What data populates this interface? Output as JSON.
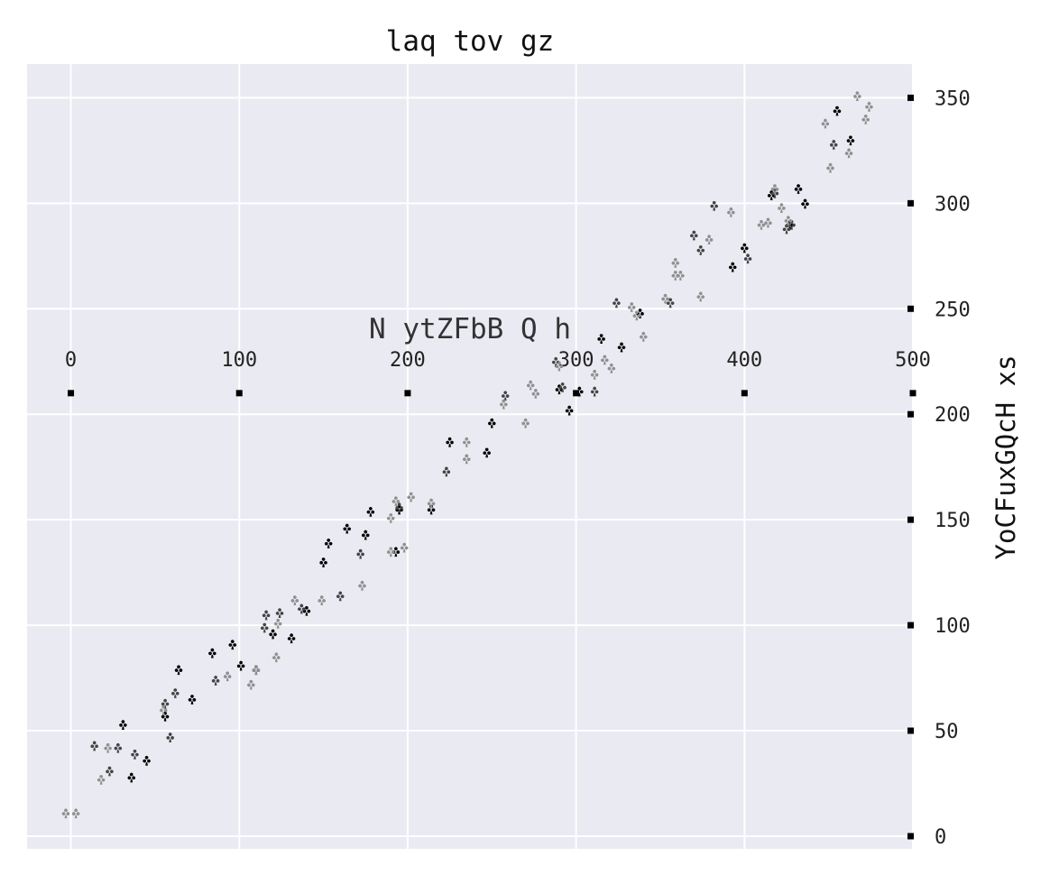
{
  "chart_data": {
    "type": "scatter",
    "title": "laq tov gz",
    "xlabel": "N ytZFbB Q h",
    "ylabel": "YoCFuxGQcH xs",
    "xlim": [
      -26,
      500
    ],
    "ylim": [
      -6,
      366
    ],
    "xticks": [
      0,
      100,
      200,
      300,
      400,
      500
    ],
    "yticks": [
      0,
      50,
      100,
      150,
      200,
      250,
      300,
      350
    ],
    "x_axis_position": "middle",
    "y_axis_position": "right",
    "grid": true,
    "background": "#eaeaf2",
    "grid_color": "#ffffff",
    "marker": "club",
    "series": [
      {
        "color": "#000000",
        "points": [
          [
            31,
            52
          ],
          [
            36,
            27
          ],
          [
            45,
            35
          ],
          [
            56,
            56
          ],
          [
            64,
            78
          ],
          [
            72,
            64
          ],
          [
            84,
            86
          ],
          [
            96,
            90
          ],
          [
            101,
            80
          ],
          [
            110,
            78
          ],
          [
            120,
            95
          ],
          [
            131,
            93
          ],
          [
            140,
            106
          ],
          [
            150,
            129
          ],
          [
            153,
            138
          ],
          [
            164,
            145
          ],
          [
            175,
            142
          ],
          [
            178,
            153
          ],
          [
            193,
            134
          ],
          [
            195,
            154
          ],
          [
            214,
            154
          ],
          [
            225,
            186
          ],
          [
            247,
            181
          ],
          [
            250,
            195
          ],
          [
            290,
            211
          ],
          [
            296,
            201
          ],
          [
            302,
            210
          ],
          [
            315,
            235
          ],
          [
            327,
            231
          ],
          [
            338,
            247
          ],
          [
            393,
            269
          ],
          [
            400,
            278
          ],
          [
            416,
            303
          ],
          [
            427,
            289
          ],
          [
            432,
            306
          ],
          [
            436,
            299
          ],
          [
            455,
            343
          ],
          [
            463,
            329
          ]
        ]
      },
      {
        "color": "#444444",
        "points": [
          [
            14,
            42
          ],
          [
            23,
            30
          ],
          [
            28,
            41
          ],
          [
            38,
            38
          ],
          [
            56,
            62
          ],
          [
            59,
            46
          ],
          [
            62,
            67
          ],
          [
            86,
            73
          ],
          [
            115,
            98
          ],
          [
            116,
            104
          ],
          [
            124,
            105
          ],
          [
            137,
            107
          ],
          [
            160,
            113
          ],
          [
            172,
            133
          ],
          [
            195,
            155
          ],
          [
            223,
            172
          ],
          [
            258,
            208
          ],
          [
            288,
            224
          ],
          [
            292,
            212
          ],
          [
            311,
            210
          ],
          [
            324,
            252
          ],
          [
            356,
            252
          ],
          [
            370,
            284
          ],
          [
            374,
            277
          ],
          [
            382,
            298
          ],
          [
            402,
            273
          ],
          [
            418,
            304
          ],
          [
            425,
            287
          ],
          [
            428,
            289
          ],
          [
            453,
            327
          ]
        ]
      },
      {
        "color": "#909090",
        "points": [
          [
            -3,
            10
          ],
          [
            3,
            10
          ],
          [
            18,
            26
          ],
          [
            22,
            41
          ],
          [
            55,
            59
          ],
          [
            93,
            75
          ],
          [
            107,
            71
          ],
          [
            110,
            78
          ],
          [
            122,
            84
          ],
          [
            123,
            100
          ],
          [
            133,
            111
          ],
          [
            149,
            111
          ],
          [
            173,
            118
          ],
          [
            190,
            134
          ],
          [
            190,
            150
          ],
          [
            193,
            158
          ],
          [
            198,
            136
          ],
          [
            202,
            160
          ],
          [
            214,
            157
          ],
          [
            235,
            186
          ],
          [
            235,
            178
          ],
          [
            257,
            204
          ],
          [
            270,
            195
          ],
          [
            273,
            213
          ],
          [
            276,
            209
          ],
          [
            290,
            222
          ],
          [
            311,
            218
          ],
          [
            317,
            225
          ],
          [
            321,
            221
          ],
          [
            333,
            250
          ],
          [
            336,
            246
          ],
          [
            340,
            236
          ],
          [
            353,
            254
          ],
          [
            359,
            271
          ],
          [
            359,
            265
          ],
          [
            362,
            265
          ],
          [
            374,
            255
          ],
          [
            379,
            282
          ],
          [
            392,
            295
          ],
          [
            410,
            289
          ],
          [
            414,
            290
          ],
          [
            418,
            306
          ],
          [
            422,
            297
          ],
          [
            426,
            291
          ],
          [
            448,
            337
          ],
          [
            451,
            316
          ],
          [
            462,
            323
          ],
          [
            467,
            350
          ],
          [
            472,
            339
          ],
          [
            474,
            345
          ]
        ]
      }
    ]
  }
}
